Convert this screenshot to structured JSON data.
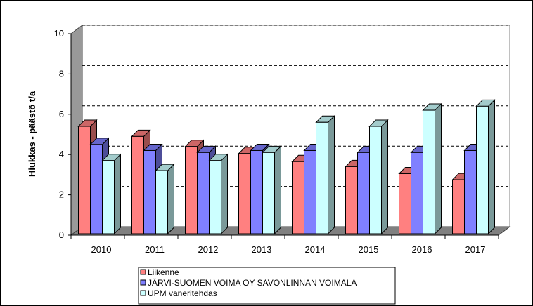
{
  "chart_data": {
    "type": "bar",
    "categories": [
      "2010",
      "2011",
      "2012",
      "2013",
      "2014",
      "2015",
      "2016",
      "2017"
    ],
    "series": [
      {
        "name": "Liikenne",
        "values": [
          5.4,
          4.9,
          4.4,
          4.05,
          3.65,
          3.4,
          3.05,
          2.75
        ],
        "color": "#ff8080"
      },
      {
        "name": "JÄRVI-SUOMEN VOIMA OY SAVONLINNAN VOIMALA",
        "values": [
          4.5,
          4.2,
          4.1,
          4.2,
          4.2,
          4.1,
          4.1,
          4.2
        ],
        "color": "#8080ff"
      },
      {
        "name": "UPM vaneritehdas",
        "values": [
          3.7,
          3.2,
          3.7,
          4.1,
          5.6,
          5.4,
          6.2,
          6.4
        ],
        "color": "#ccffff"
      }
    ],
    "ylabel": "Hiukkas - päästö t/a",
    "xlabel": "",
    "ylim": [
      0,
      10
    ],
    "yticks": [
      0,
      2,
      4,
      6,
      8,
      10
    ],
    "grid": true,
    "legend_position": "bottom"
  }
}
